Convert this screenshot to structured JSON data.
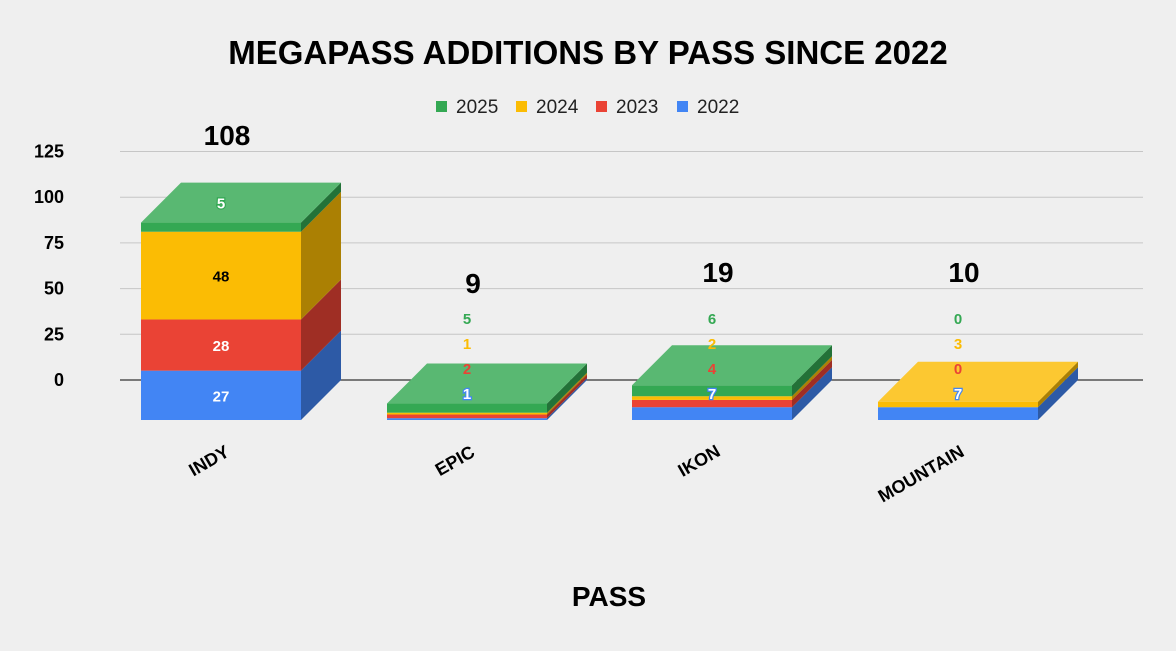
{
  "chart_data": {
    "type": "bar",
    "stacked": true,
    "three_d": true,
    "title": "MEGAPASS ADDITIONS BY PASS SINCE 2022",
    "xlabel": "PASS",
    "ylabel": "",
    "categories": [
      "INDY",
      "EPIC",
      "IKON",
      "MOUNTAIN"
    ],
    "series": [
      {
        "name": "2022",
        "color": "#4285f4",
        "values": [
          27,
          1,
          7,
          7
        ]
      },
      {
        "name": "2023",
        "color": "#ea4335",
        "values": [
          28,
          2,
          4,
          0
        ]
      },
      {
        "name": "2024",
        "color": "#fbbc04",
        "values": [
          48,
          1,
          2,
          3
        ]
      },
      {
        "name": "2025",
        "color": "#34a853",
        "values": [
          5,
          5,
          6,
          0
        ]
      }
    ],
    "legend_order": [
      "2025",
      "2024",
      "2023",
      "2022"
    ],
    "totals": [
      108,
      9,
      19,
      10
    ],
    "yticks": [
      0,
      25,
      50,
      75,
      100,
      125
    ],
    "ylim": [
      0,
      125
    ],
    "grid": true,
    "legend_position": "top-center"
  }
}
